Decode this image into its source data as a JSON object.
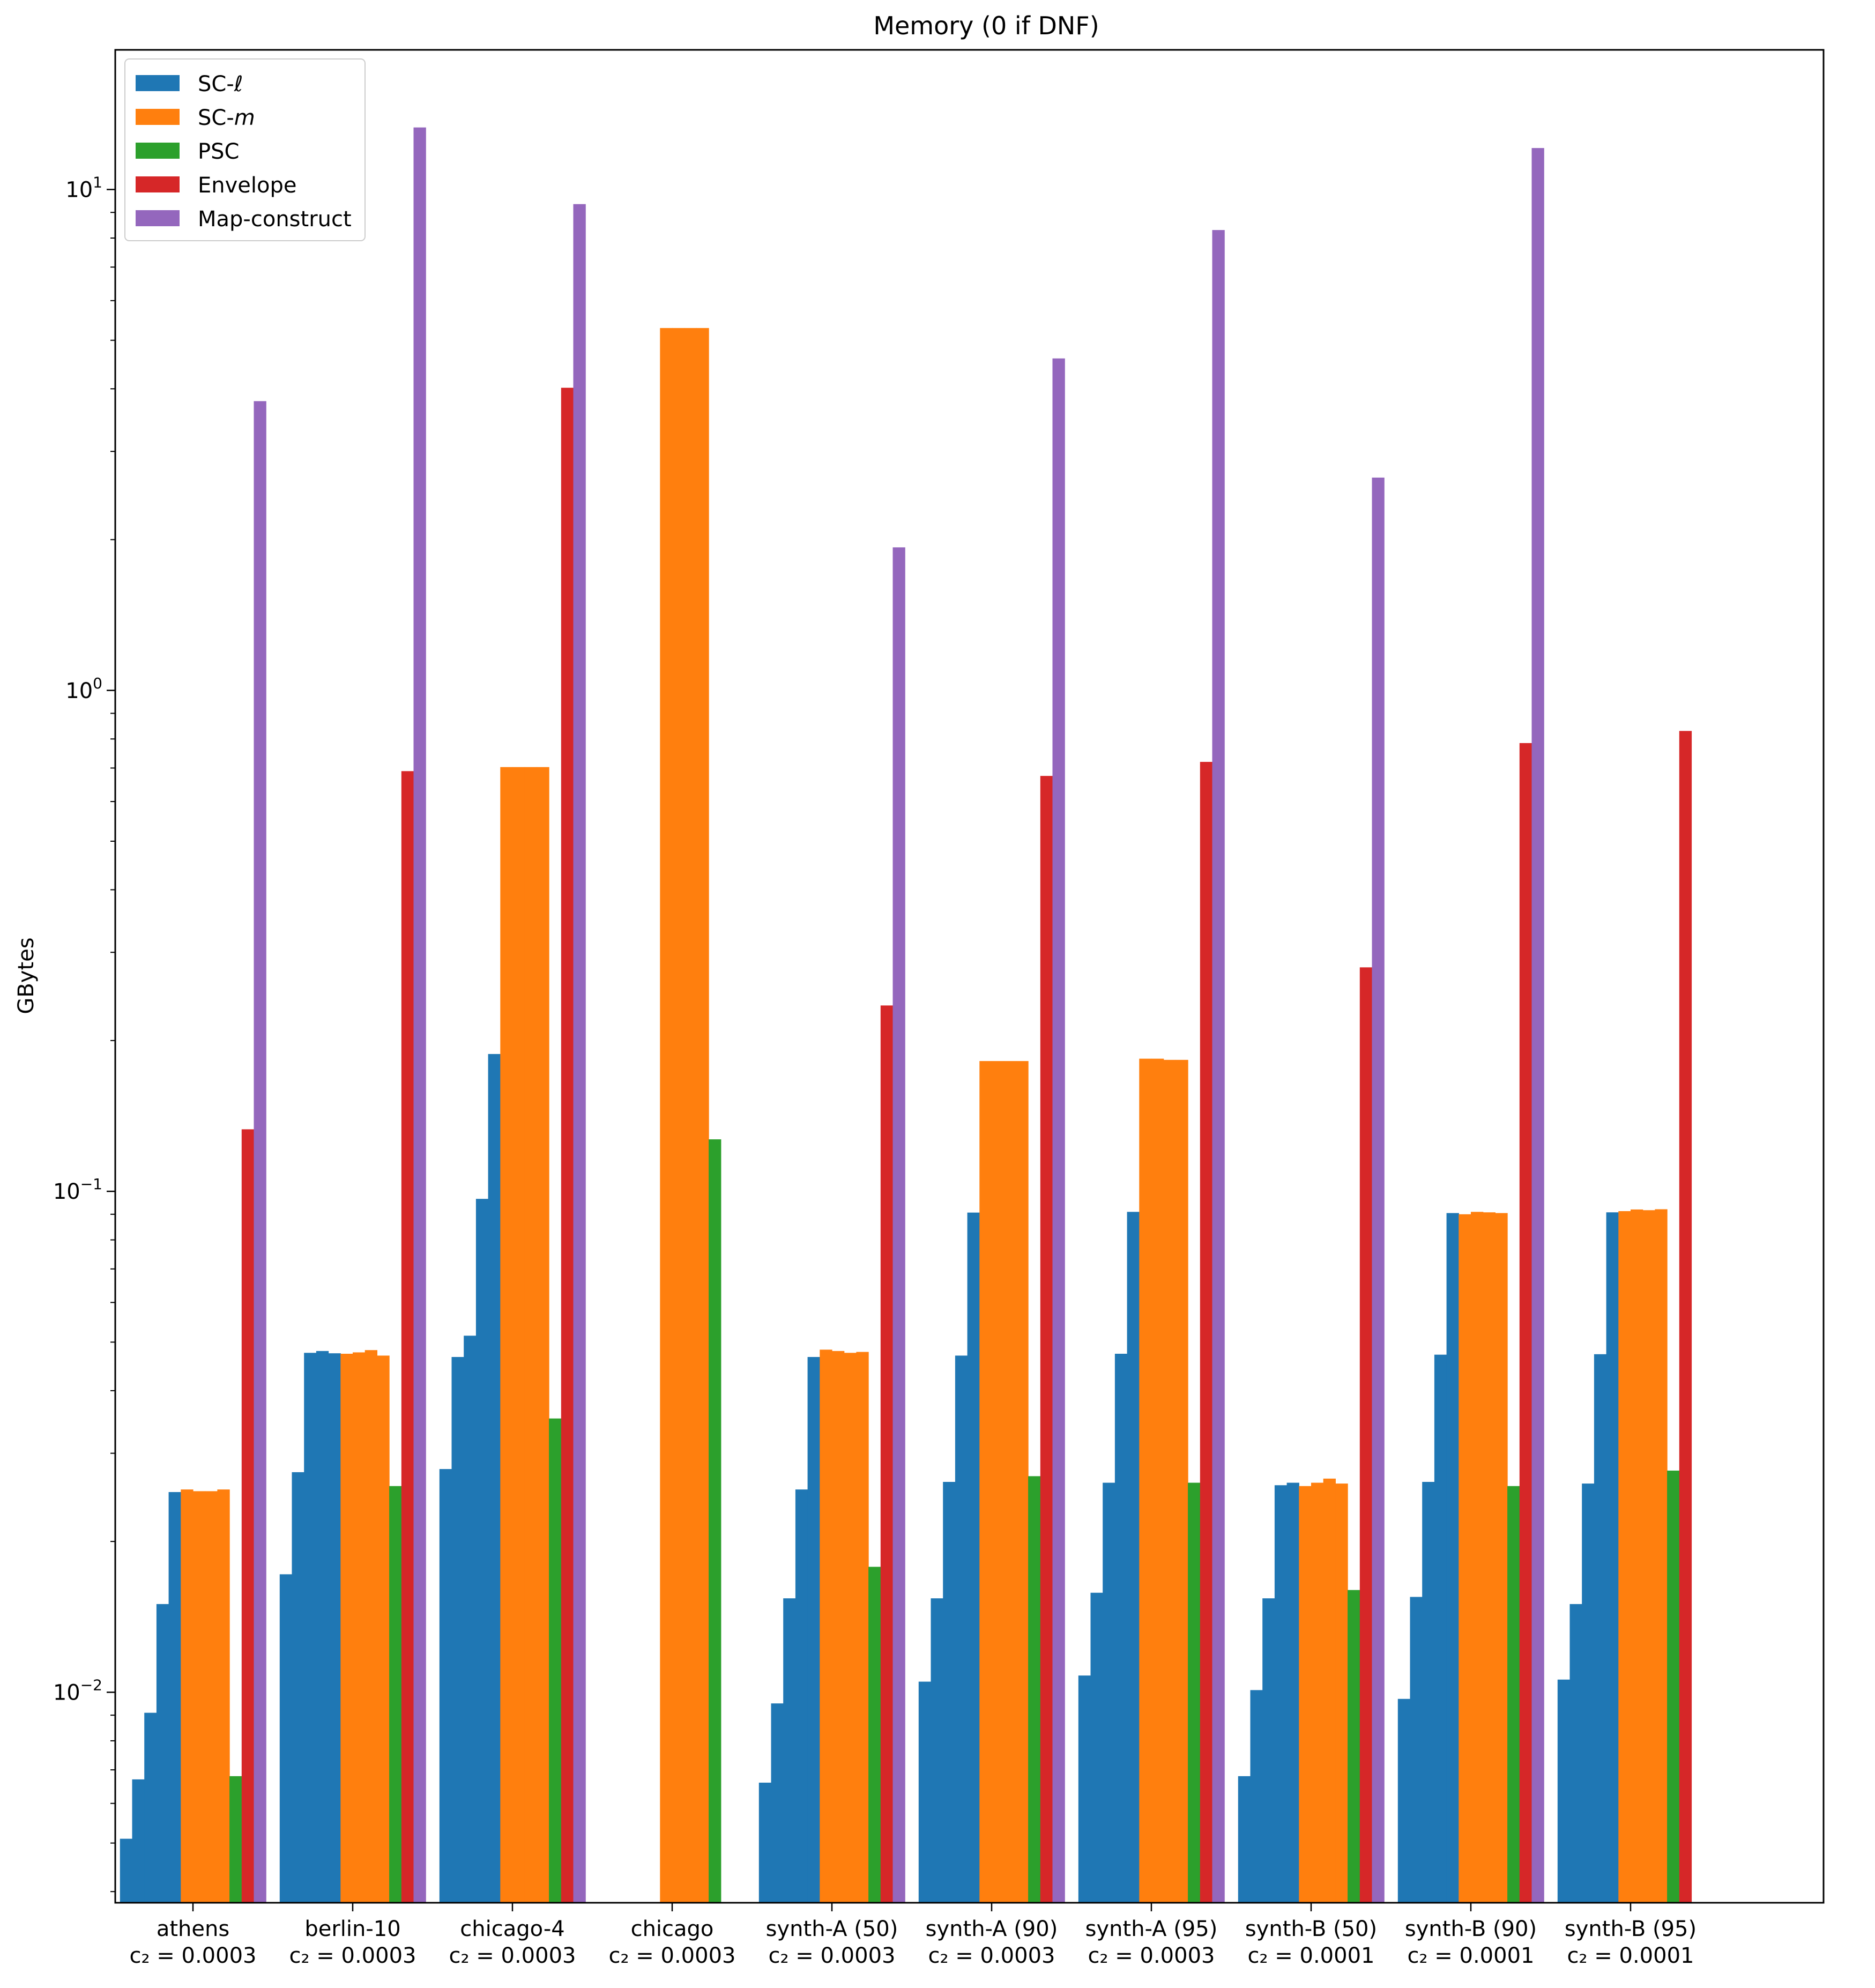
{
  "chart_data": {
    "type": "bar",
    "title": "Memory (0 if DNF)",
    "xlabel": "",
    "ylabel": "GBytes",
    "yscale": "log",
    "ylim": [
      0.0038,
      19.0
    ],
    "y_ticks": [
      {
        "value": 0.01,
        "base": "10",
        "exp": "−2"
      },
      {
        "value": 0.1,
        "base": "10",
        "exp": "−1"
      },
      {
        "value": 1,
        "base": "10",
        "exp": "0"
      },
      {
        "value": 10,
        "base": "10",
        "exp": "1"
      }
    ],
    "legend_position": "top-left",
    "groups": [
      {
        "name": "athens",
        "param": "c₂ = 0.0003"
      },
      {
        "name": "berlin-10",
        "param": "c₂ = 0.0003"
      },
      {
        "name": "chicago-4",
        "param": "c₂ = 0.0003"
      },
      {
        "name": "chicago",
        "param": "c₂ = 0.0003"
      },
      {
        "name": "synth-A (50)",
        "param": "c₂ = 0.0003"
      },
      {
        "name": "synth-A (90)",
        "param": "c₂ = 0.0003"
      },
      {
        "name": "synth-A (95)",
        "param": "c₂ = 0.0003"
      },
      {
        "name": "synth-B (50)",
        "param": "c₂ = 0.0001"
      },
      {
        "name": "synth-B (90)",
        "param": "c₂ = 0.0001"
      },
      {
        "name": "synth-B (95)",
        "param": "c₂ = 0.0001"
      }
    ],
    "series": [
      {
        "name": "SC-ℓ",
        "color": "#1f77b4",
        "bars_per_group": 5,
        "values": [
          [
            0.0051,
            0.0067,
            0.0091,
            0.015,
            0.0251
          ],
          [
            0.0172,
            0.0275,
            0.0476,
            0.048,
            0.0475
          ],
          [
            0.0279,
            0.0467,
            0.0515,
            0.0966,
            0.188
          ],
          [
            0,
            0,
            0,
            0,
            0
          ],
          [
            0.0066,
            0.0095,
            0.0154,
            0.0254,
            0.0467
          ],
          [
            0.0105,
            0.0154,
            0.0263,
            0.047,
            0.0907
          ],
          [
            0.0108,
            0.0158,
            0.0262,
            0.0474,
            0.091
          ],
          [
            0.0068,
            0.0101,
            0.0154,
            0.0259,
            0.0262
          ],
          [
            0.0097,
            0.0155,
            0.0263,
            0.0472,
            0.0905
          ],
          [
            0.0106,
            0.015,
            0.0261,
            0.0473,
            0.0908
          ]
        ]
      },
      {
        "name": "SC-m",
        "color": "#ff7f0e",
        "bars_per_group": 4,
        "values": [
          [
            0.0254,
            0.0252,
            0.0252,
            0.0254
          ],
          [
            0.0474,
            0.0477,
            0.0482,
            0.047
          ],
          [
            0.703,
            0.703,
            0.703,
            0.703
          ],
          [
            5.29,
            5.29,
            5.29,
            5.29
          ],
          [
            0.0483,
            0.048,
            0.0476,
            0.0478
          ],
          [
            0.182,
            0.182,
            0.182,
            0.182
          ],
          [
            0.184,
            0.184,
            0.183,
            0.183
          ],
          [
            0.0258,
            0.0262,
            0.0267,
            0.0261
          ],
          [
            0.09,
            0.091,
            0.0908,
            0.0905
          ],
          [
            0.0913,
            0.092,
            0.0917,
            0.0921
          ]
        ]
      },
      {
        "name": "PSC",
        "color": "#2ca02c",
        "values": [
          0.0068,
          0.0258,
          0.0352,
          0.127,
          0.0178,
          0.027,
          0.0262,
          0.016,
          0.0258,
          0.0277
        ]
      },
      {
        "name": "Envelope",
        "color": "#d62728",
        "values": [
          0.133,
          0.69,
          4.02,
          0,
          0.235,
          0.675,
          0.72,
          0.28,
          0.785,
          0.83
        ]
      },
      {
        "name": "Map-construct",
        "color": "#9467bd",
        "values": [
          3.78,
          13.3,
          9.35,
          0,
          1.93,
          4.6,
          8.3,
          2.66,
          12.1,
          0
        ]
      }
    ],
    "legend": [
      {
        "label": "SC-",
        "italic": "ℓ",
        "color": "#1f77b4"
      },
      {
        "label": "SC-",
        "italic": "m",
        "color": "#ff7f0e"
      },
      {
        "label": "PSC",
        "italic": "",
        "color": "#2ca02c"
      },
      {
        "label": "Envelope",
        "italic": "",
        "color": "#d62728"
      },
      {
        "label": "Map-construct",
        "italic": "",
        "color": "#9467bd"
      }
    ]
  }
}
